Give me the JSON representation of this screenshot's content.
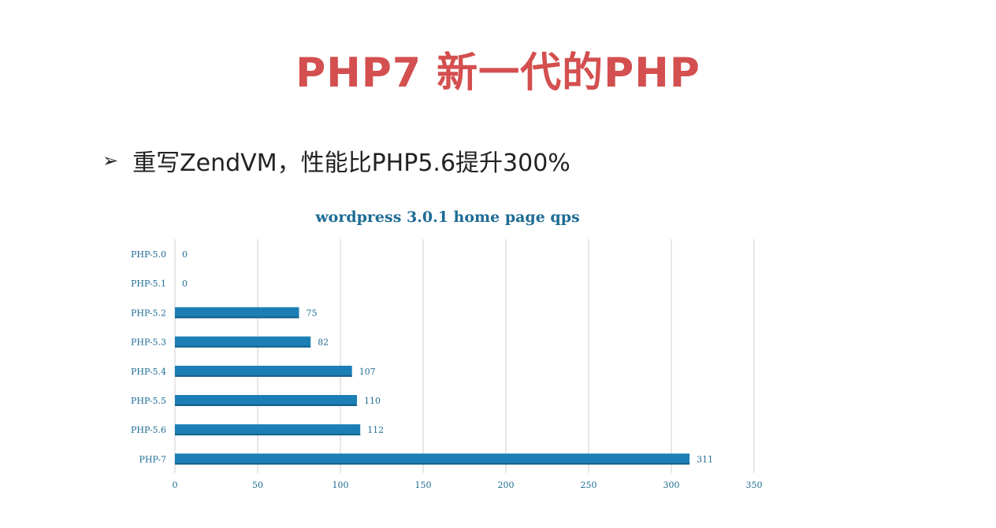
{
  "slide": {
    "title": "PHP7 新一代的PHP",
    "bullet_icon": "arrow-bullet-icon",
    "bullet_text": "重写ZendVM，性能比PHP5.6提升300%"
  },
  "colors": {
    "title": "#d44f4f",
    "bar": "#1b7fb5",
    "chart_text": "#1e6c94",
    "grid": "#cfcfcf"
  },
  "chart_data": {
    "type": "bar",
    "orientation": "horizontal",
    "title": "wordpress 3.0.1 home page qps",
    "categories": [
      "PHP-5.0",
      "PHP-5.1",
      "PHP-5.2",
      "PHP-5.3",
      "PHP-5.4",
      "PHP-5.5",
      "PHP-5.6",
      "PHP-7"
    ],
    "values": [
      0,
      0,
      75,
      82,
      107,
      110,
      112,
      311
    ],
    "xlim": [
      0,
      350
    ],
    "xticks": [
      0,
      50,
      100,
      150,
      200,
      250,
      300,
      350
    ],
    "grid": true,
    "data_labels": true
  }
}
